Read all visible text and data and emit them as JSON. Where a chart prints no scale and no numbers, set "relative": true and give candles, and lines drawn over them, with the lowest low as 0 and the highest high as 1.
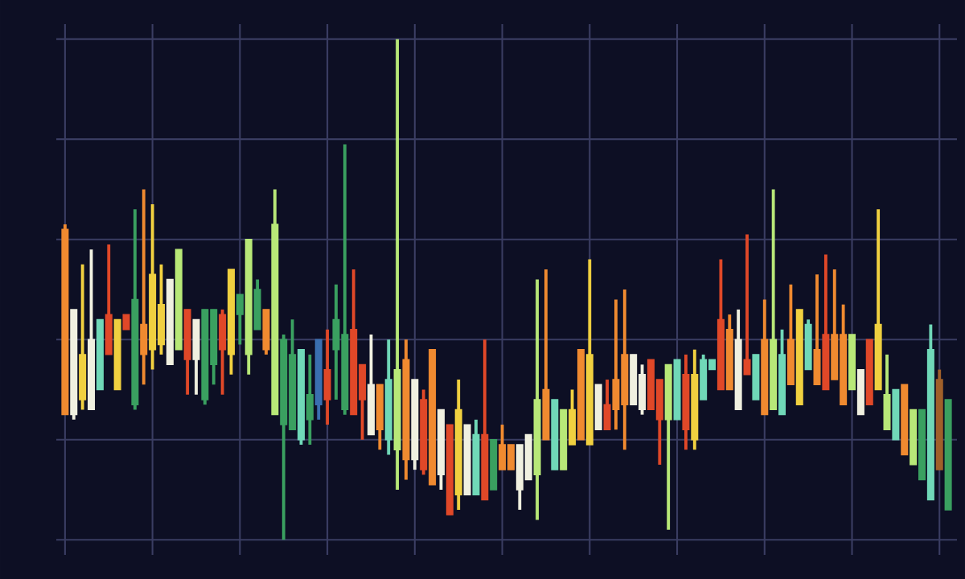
{
  "chart_data": {
    "type": "candlestick",
    "relative": true,
    "grid": true,
    "tick_labels": false,
    "categories": [
      null,
      null,
      null,
      null,
      null,
      null,
      null,
      null,
      null,
      null,
      null,
      null,
      null,
      null,
      null,
      null,
      null,
      null,
      null,
      null,
      null,
      null,
      null,
      null,
      null,
      null,
      null,
      null,
      null,
      null,
      null,
      null,
      null,
      null,
      null,
      null,
      null,
      null,
      null,
      null,
      null,
      null,
      null,
      null,
      null,
      null,
      null,
      null,
      null,
      null,
      null,
      null,
      null,
      null,
      null,
      null,
      null,
      null,
      null,
      null,
      null,
      null,
      null,
      null,
      null,
      null,
      null,
      null,
      null,
      null,
      null,
      null,
      null,
      null,
      null,
      null,
      null,
      null,
      null,
      null,
      null,
      null,
      null,
      null,
      null,
      null,
      null,
      null,
      null,
      null,
      null,
      null,
      null,
      null,
      null,
      null,
      null,
      null,
      null,
      null,
      null,
      null
    ],
    "ohlc": [
      [
        0.62,
        0.63,
        0.25,
        0.25
      ],
      [
        0.25,
        0.46,
        0.24,
        0.46
      ],
      [
        0.37,
        0.55,
        0.26,
        0.28
      ],
      [
        0.26,
        0.58,
        0.26,
        0.4
      ],
      [
        0.3,
        0.44,
        0.3,
        0.44
      ],
      [
        0.45,
        0.59,
        0.37,
        0.37
      ],
      [
        0.44,
        0.44,
        0.3,
        0.3
      ],
      [
        0.45,
        0.45,
        0.42,
        0.42
      ],
      [
        0.27,
        0.66,
        0.26,
        0.48
      ],
      [
        0.43,
        0.7,
        0.31,
        0.37
      ],
      [
        0.53,
        0.67,
        0.34,
        0.38
      ],
      [
        0.47,
        0.55,
        0.37,
        0.39
      ],
      [
        0.35,
        0.52,
        0.35,
        0.52
      ],
      [
        0.38,
        0.58,
        0.38,
        0.58
      ],
      [
        0.46,
        0.46,
        0.29,
        0.36
      ],
      [
        0.36,
        0.44,
        0.29,
        0.44
      ],
      [
        0.28,
        0.46,
        0.27,
        0.46
      ],
      [
        0.35,
        0.46,
        0.31,
        0.46
      ],
      [
        0.45,
        0.46,
        0.29,
        0.38
      ],
      [
        0.54,
        0.54,
        0.33,
        0.37
      ],
      [
        0.45,
        0.49,
        0.39,
        0.49
      ],
      [
        0.37,
        0.6,
        0.33,
        0.6
      ],
      [
        0.42,
        0.52,
        0.42,
        0.5
      ],
      [
        0.46,
        0.46,
        0.37,
        0.38
      ],
      [
        0.25,
        0.7,
        0.25,
        0.63
      ],
      [
        0.23,
        0.41,
        0.0,
        0.4
      ],
      [
        0.22,
        0.44,
        0.22,
        0.37
      ],
      [
        0.2,
        0.38,
        0.19,
        0.38
      ],
      [
        0.24,
        0.37,
        0.19,
        0.29
      ],
      [
        0.27,
        0.4,
        0.24,
        0.4
      ],
      [
        0.34,
        0.42,
        0.23,
        0.28
      ],
      [
        0.38,
        0.51,
        0.28,
        0.44
      ],
      [
        0.26,
        0.79,
        0.25,
        0.41
      ],
      [
        0.42,
        0.54,
        0.25,
        0.25
      ],
      [
        0.35,
        0.35,
        0.2,
        0.28
      ],
      [
        0.21,
        0.41,
        0.21,
        0.31
      ],
      [
        0.31,
        0.31,
        0.18,
        0.22
      ],
      [
        0.2,
        0.4,
        0.17,
        0.32
      ],
      [
        0.18,
        1.0,
        0.1,
        0.34
      ],
      [
        0.36,
        0.4,
        0.12,
        0.16
      ],
      [
        0.16,
        0.32,
        0.14,
        0.32
      ],
      [
        0.28,
        0.3,
        0.13,
        0.14
      ],
      [
        0.38,
        0.38,
        0.11,
        0.11
      ],
      [
        0.13,
        0.26,
        0.1,
        0.26
      ],
      [
        0.23,
        0.23,
        0.05,
        0.05
      ],
      [
        0.26,
        0.32,
        0.06,
        0.09
      ],
      [
        0.09,
        0.23,
        0.09,
        0.23
      ],
      [
        0.09,
        0.24,
        0.09,
        0.21
      ],
      [
        0.21,
        0.4,
        0.08,
        0.08
      ],
      [
        0.1,
        0.2,
        0.1,
        0.2
      ],
      [
        0.19,
        0.23,
        0.14,
        0.14
      ],
      [
        0.19,
        0.19,
        0.14,
        0.14
      ],
      [
        0.1,
        0.19,
        0.06,
        0.19
      ],
      [
        0.12,
        0.21,
        0.12,
        0.21
      ],
      [
        0.13,
        0.52,
        0.04,
        0.28
      ],
      [
        0.3,
        0.54,
        0.2,
        0.2
      ],
      [
        0.14,
        0.28,
        0.14,
        0.28
      ],
      [
        0.14,
        0.26,
        0.14,
        0.26
      ],
      [
        0.26,
        0.3,
        0.19,
        0.19
      ],
      [
        0.38,
        0.38,
        0.2,
        0.2
      ],
      [
        0.37,
        0.56,
        0.19,
        0.19
      ],
      [
        0.22,
        0.31,
        0.22,
        0.31
      ],
      [
        0.27,
        0.32,
        0.22,
        0.22
      ],
      [
        0.32,
        0.48,
        0.22,
        0.26
      ],
      [
        0.37,
        0.5,
        0.18,
        0.27
      ],
      [
        0.27,
        0.37,
        0.27,
        0.37
      ],
      [
        0.26,
        0.35,
        0.25,
        0.33
      ],
      [
        0.36,
        0.36,
        0.26,
        0.26
      ],
      [
        0.32,
        0.32,
        0.15,
        0.24
      ],
      [
        0.24,
        0.35,
        0.02,
        0.35
      ],
      [
        0.24,
        0.36,
        0.24,
        0.36
      ],
      [
        0.33,
        0.37,
        0.18,
        0.22
      ],
      [
        0.33,
        0.38,
        0.18,
        0.2
      ],
      [
        0.28,
        0.37,
        0.28,
        0.36
      ],
      [
        0.34,
        0.36,
        0.34,
        0.36
      ],
      [
        0.44,
        0.56,
        0.3,
        0.3
      ],
      [
        0.42,
        0.45,
        0.3,
        0.3
      ],
      [
        0.4,
        0.46,
        0.26,
        0.26
      ],
      [
        0.36,
        0.61,
        0.33,
        0.33
      ],
      [
        0.28,
        0.37,
        0.28,
        0.37
      ],
      [
        0.4,
        0.48,
        0.25,
        0.25
      ],
      [
        0.26,
        0.7,
        0.26,
        0.4
      ],
      [
        0.25,
        0.42,
        0.25,
        0.37
      ],
      [
        0.4,
        0.51,
        0.31,
        0.31
      ],
      [
        0.46,
        0.46,
        0.27,
        0.27
      ],
      [
        0.34,
        0.44,
        0.34,
        0.43
      ],
      [
        0.38,
        0.53,
        0.31,
        0.31
      ],
      [
        0.41,
        0.57,
        0.3,
        0.3
      ],
      [
        0.41,
        0.54,
        0.32,
        0.32
      ],
      [
        0.41,
        0.47,
        0.27,
        0.27
      ],
      [
        0.3,
        0.41,
        0.3,
        0.41
      ],
      [
        0.25,
        0.34,
        0.25,
        0.34
      ],
      [
        0.4,
        0.4,
        0.27,
        0.27
      ],
      [
        0.43,
        0.66,
        0.3,
        0.3
      ],
      [
        0.22,
        0.37,
        0.22,
        0.29
      ],
      [
        0.2,
        0.3,
        0.2,
        0.3
      ],
      [
        0.31,
        0.31,
        0.17,
        0.17
      ],
      [
        0.15,
        0.26,
        0.15,
        0.26
      ],
      [
        0.12,
        0.26,
        0.12,
        0.26
      ],
      [
        0.08,
        0.43,
        0.08,
        0.38
      ],
      [
        0.32,
        0.34,
        0.14,
        0.14
      ],
      [
        0.06,
        0.28,
        0.06,
        0.28
      ]
    ],
    "colors": [
      "#f08a30",
      "#f0f0e0",
      "#f0d040",
      "#f0f0e0",
      "#70d8b8",
      "#e04828",
      "#f0d040",
      "#e04828",
      "#3aa060",
      "#f08a30",
      "#f0d040",
      "#f0d040",
      "#f0f0e0",
      "#b8e878",
      "#e04828",
      "#f0f0e0",
      "#3aa060",
      "#3aa060",
      "#e04828",
      "#f0d040",
      "#3aa060",
      "#b8e878",
      "#3aa060",
      "#f08a30",
      "#b8e878",
      "#3aa060",
      "#3aa060",
      "#70d8b8",
      "#3aa060",
      "#3a6fb0",
      "#e04828",
      "#3aa060",
      "#3aa060",
      "#e04828",
      "#e04828",
      "#f0f0e0",
      "#f08a30",
      "#70d8b8",
      "#b8e878",
      "#f08a30",
      "#f0f0e0",
      "#e04828",
      "#f08a30",
      "#f0f0e0",
      "#e04828",
      "#f0d040",
      "#f0f0e0",
      "#70d8b8",
      "#e04828",
      "#3aa060",
      "#f08a30",
      "#f08a30",
      "#f0f0e0",
      "#f0f0e0",
      "#b8e878",
      "#f08a30",
      "#70d8b8",
      "#b8e878",
      "#f0d040",
      "#f08a30",
      "#f0d040",
      "#f0f0e0",
      "#e04828",
      "#f08a30",
      "#f08a30",
      "#f0f0e0",
      "#f0f0e0",
      "#e04828",
      "#e04828",
      "#b8e878",
      "#70d8b8",
      "#e04828",
      "#f0d040",
      "#70d8b8",
      "#70d8b8",
      "#e04828",
      "#f08a30",
      "#f0f0e0",
      "#e04828",
      "#70d8b8",
      "#f08a30",
      "#b8e878",
      "#70d8b8",
      "#f08a30",
      "#f0d040",
      "#70d8b8",
      "#f08a30",
      "#e04828",
      "#f08a30",
      "#f08a30",
      "#b8e878",
      "#f0f0e0",
      "#e04828",
      "#f0d040",
      "#b8e878",
      "#70d8b8",
      "#f08a30",
      "#b8e878",
      "#3aa060",
      "#70d8b8",
      "#a0602a",
      "#3aa060"
    ]
  }
}
